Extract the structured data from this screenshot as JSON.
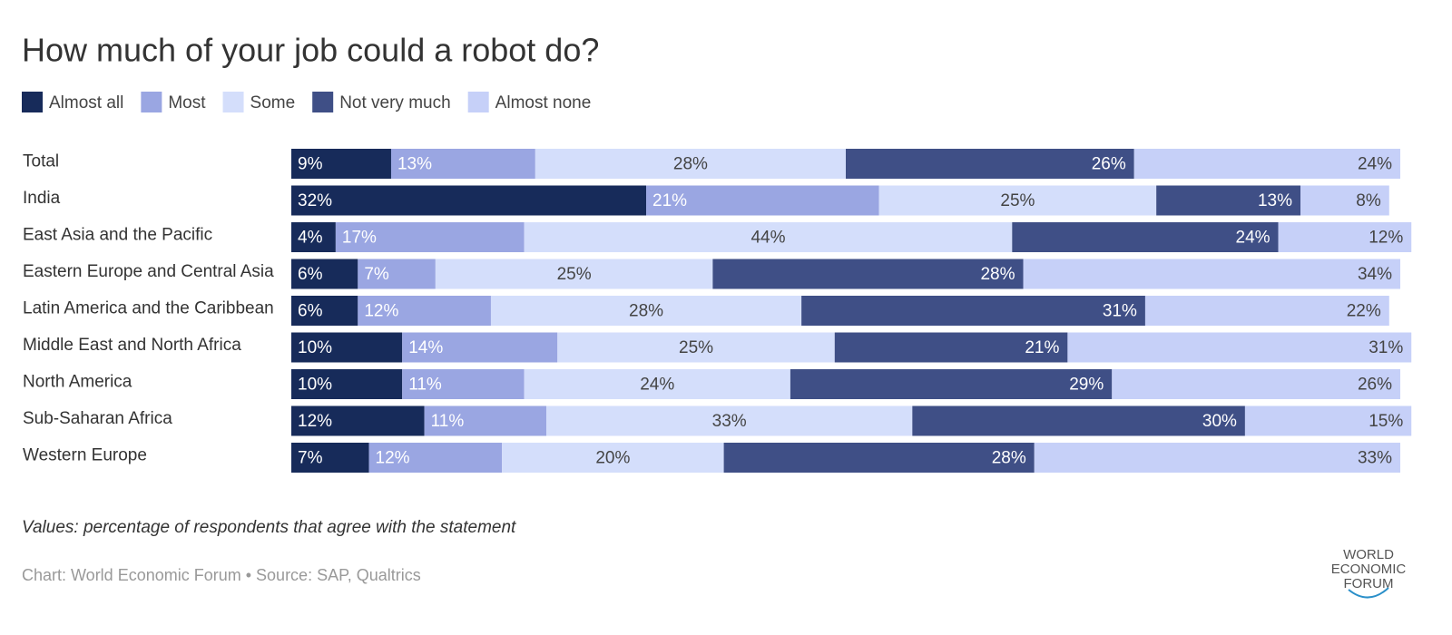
{
  "chart_data": {
    "type": "stacked-bar",
    "title": "How much of your job could a robot do?",
    "categories": [
      "Total",
      "India",
      "East Asia and the Pacific",
      "Eastern Europe and Central Asia",
      "Latin America and the Caribbean",
      "Middle East and North Africa",
      "North America",
      "Sub-Saharan Africa",
      "Western Europe"
    ],
    "xlim": [
      0,
      100
    ],
    "series": [
      {
        "name": "Almost all",
        "color": "#172b5a",
        "values": [
          9,
          32,
          4,
          6,
          6,
          10,
          10,
          12,
          7
        ],
        "value_labels": [
          "9%",
          "32%",
          "4%",
          "6%",
          "6%",
          "10%",
          "10%",
          "12%",
          "7%"
        ]
      },
      {
        "name": "Most",
        "color": "#9aa6e2",
        "values": [
          13,
          21,
          17,
          7,
          12,
          14,
          11,
          11,
          12
        ],
        "value_labels": [
          "13%",
          "21%",
          "17%",
          "7%",
          "12%",
          "14%",
          "11%",
          "11%",
          "12%"
        ]
      },
      {
        "name": "Some",
        "color": "#d4defb",
        "values": [
          28,
          25,
          44,
          25,
          28,
          25,
          24,
          33,
          20
        ],
        "value_labels": [
          "28%",
          "25%",
          "44%",
          "25%",
          "28%",
          "25%",
          "24%",
          "33%",
          "20%"
        ]
      },
      {
        "name": "Not very much",
        "color": "#3f4f86",
        "values": [
          26,
          13,
          24,
          28,
          31,
          21,
          29,
          30,
          28
        ],
        "value_labels": [
          "26%",
          "13%",
          "24%",
          "28%",
          "31%",
          "21%",
          "29%",
          "30%",
          "28%"
        ]
      },
      {
        "name": "Almost none",
        "color": "#c6d0f8",
        "values": [
          24,
          8,
          12,
          34,
          22,
          31,
          26,
          15,
          33
        ],
        "value_labels": [
          "24%",
          "8%",
          "12%",
          "34%",
          "22%",
          "31%",
          "26%",
          "15%",
          "33%"
        ]
      }
    ],
    "note": "Values: percentage of respondents that agree with the statement",
    "source": "Chart: World Economic Forum • Source: SAP, Qualtrics",
    "logo": [
      "WORLD",
      "ECONOMIC",
      "FORUM"
    ]
  }
}
